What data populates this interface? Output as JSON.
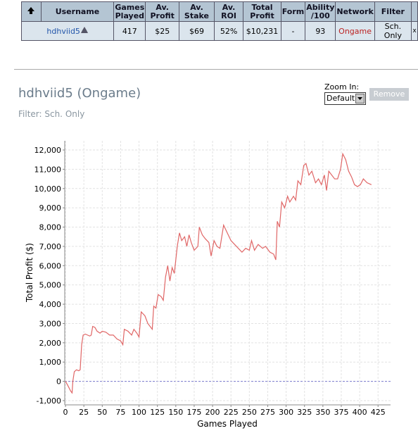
{
  "table": {
    "headers": [
      "Username",
      "Games Played",
      "Av. Profit",
      "Av. Stake",
      "Av. ROI",
      "Total Profit",
      "Form",
      "Ability /100",
      "Network",
      "Filter"
    ],
    "rows": [
      [
        "hdhviid5",
        "417",
        "$25",
        "$69",
        "52%",
        "$10,231",
        "-",
        "93",
        "Ongame",
        "Sch. Only",
        "x"
      ]
    ]
  },
  "title": "hdhviid5 (Ongame)",
  "filter": "Filter: Sch. Only",
  "zoom_label": "Zoom In:",
  "zoom_select": "Default",
  "remove_button": "Remove",
  "chart_data": {
    "type": "line",
    "xlabel": "Games Played",
    "ylabel": "Total Profit ($)",
    "grid": true,
    "xlim": [
      -1,
      442
    ],
    "ylim": [
      -1220,
      12475
    ],
    "xticks": [
      0,
      25,
      50,
      75,
      100,
      125,
      150,
      175,
      200,
      225,
      250,
      275,
      300,
      325,
      350,
      375,
      400,
      425
    ],
    "yticks": [
      {
        "value": -1000,
        "label": "-1,000"
      },
      0,
      {
        "value": 1000,
        "label": "1,000"
      },
      {
        "value": 2000,
        "label": "2,000"
      },
      {
        "value": 3000,
        "label": "3,000"
      },
      {
        "value": 4000,
        "label": "4,000"
      },
      {
        "value": 5000,
        "label": "5,000"
      },
      {
        "value": 6000,
        "label": "6,000"
      },
      {
        "value": 7000,
        "label": "7,000"
      },
      {
        "value": 8000,
        "label": "8,000"
      },
      {
        "value": 9000,
        "label": "9,000"
      },
      {
        "value": 10000,
        "label": "10,000"
      },
      {
        "value": 11000,
        "label": "11,000"
      },
      {
        "value": 12000,
        "label": "12,000"
      }
    ],
    "x": [
      0,
      3,
      7,
      9,
      10,
      12,
      15,
      18,
      20,
      22,
      24,
      27,
      30,
      33,
      35,
      37,
      40,
      43,
      47,
      50,
      55,
      60,
      65,
      70,
      75,
      78,
      80,
      85,
      90,
      93,
      97,
      100,
      103,
      108,
      112,
      118,
      120,
      123,
      126,
      130,
      133,
      136,
      139,
      142,
      145,
      148,
      152,
      155,
      158,
      162,
      165,
      168,
      171,
      175,
      180,
      182,
      186,
      190,
      195,
      198,
      202,
      206,
      210,
      215,
      220,
      225,
      230,
      235,
      240,
      245,
      250,
      253,
      257,
      262,
      268,
      272,
      278,
      283,
      286,
      288,
      291,
      294,
      298,
      302,
      305,
      310,
      313,
      316,
      320,
      324,
      327,
      331,
      335,
      340,
      344,
      348,
      352,
      355,
      358,
      362,
      366,
      370,
      374,
      377,
      381,
      385,
      389,
      393,
      397,
      401,
      405,
      410,
      416
    ],
    "series": [
      {
        "color": "#e06666",
        "values": [
          0,
          -200,
          -500,
          -600,
          0,
          500,
          600,
          550,
          600,
          1900,
          2400,
          2450,
          2400,
          2350,
          2400,
          2850,
          2800,
          2600,
          2500,
          2600,
          2550,
          2400,
          2400,
          2200,
          2100,
          1900,
          2700,
          2600,
          2400,
          2700,
          2500,
          2300,
          3600,
          3400,
          3000,
          2700,
          3900,
          3800,
          4500,
          4400,
          4200,
          5400,
          6000,
          5200,
          5900,
          5600,
          7000,
          7700,
          7300,
          7500,
          7000,
          7600,
          7200,
          6800,
          7000,
          8000,
          7600,
          7400,
          7200,
          6500,
          7300,
          7000,
          6900,
          8100,
          7700,
          7300,
          7100,
          6900,
          6700,
          6900,
          6800,
          7300,
          6800,
          7100,
          6900,
          7000,
          6700,
          6600,
          6300,
          8300,
          8000,
          9300,
          9000,
          9600,
          9300,
          9600,
          9400,
          10400,
          10200,
          11200,
          11300,
          10700,
          10900,
          10300,
          10500,
          10200,
          10700,
          9900,
          10900,
          10700,
          10500,
          10500,
          11000,
          11800,
          11500,
          10900,
          10600,
          10200,
          10100,
          10200,
          10500,
          10300,
          10200
        ]
      }
    ]
  }
}
